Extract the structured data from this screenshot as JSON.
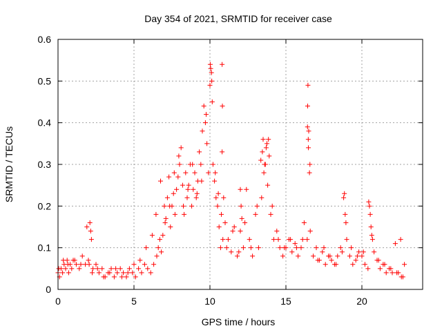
{
  "chart_data": {
    "type": "scatter",
    "title": "Day 354 of 2021, SRMTID for receiver case",
    "xlabel": "GPS time / hours",
    "ylabel": "SRMTID / TECUs",
    "xlim": [
      0,
      24
    ],
    "ylim": [
      0,
      0.6
    ],
    "x_ticks": [
      0,
      5,
      10,
      15,
      20
    ],
    "x_tick_labels": [
      "0",
      "5",
      "10",
      "15",
      "20"
    ],
    "y_ticks": [
      0,
      0.1,
      0.2,
      0.3,
      0.4,
      0.5,
      0.6
    ],
    "y_tick_labels": [
      "0",
      "0.1",
      "0.2",
      "0.3",
      "0.4",
      "0.5",
      "0.6"
    ],
    "grid": true,
    "marker": "+",
    "color": "#ff0000",
    "series": [
      {
        "name": "SRMTID",
        "x": [
          0.0,
          0.1,
          0.2,
          0.3,
          0.4,
          0.5,
          0.6,
          0.7,
          0.8,
          0.9,
          1.0,
          1.2,
          1.4,
          1.6,
          1.8,
          2.0,
          2.1,
          2.15,
          2.2,
          2.3,
          2.5,
          2.7,
          2.9,
          3.1,
          3.3,
          3.5,
          3.7,
          3.9,
          4.1,
          4.3,
          4.5,
          4.7,
          4.9,
          5.1,
          5.3,
          5.5,
          5.7,
          5.9,
          6.1,
          6.3,
          6.5,
          6.6,
          6.7,
          6.8,
          6.9,
          7.0,
          7.1,
          7.2,
          7.3,
          7.4,
          7.5,
          7.6,
          7.7,
          7.8,
          7.9,
          8.0,
          8.1,
          8.2,
          8.3,
          8.4,
          8.5,
          8.6,
          8.7,
          8.8,
          8.9,
          9.0,
          9.1,
          9.2,
          9.3,
          9.4,
          9.5,
          9.6,
          9.7,
          9.8,
          9.9,
          10.0,
          10.05,
          10.1,
          10.15,
          10.2,
          10.3,
          10.4,
          10.5,
          10.6,
          10.7,
          10.8,
          10.9,
          11.0,
          11.2,
          11.4,
          11.6,
          11.8,
          12.0,
          12.2,
          12.4,
          12.6,
          12.8,
          13.0,
          13.2,
          13.4,
          13.5,
          13.6,
          13.7,
          13.8,
          13.9,
          14.0,
          14.2,
          14.4,
          14.6,
          14.8,
          15.0,
          15.2,
          15.4,
          15.6,
          15.8,
          16.0,
          16.2,
          16.4,
          16.45,
          16.5,
          16.55,
          16.6,
          16.8,
          17.0,
          17.2,
          17.4,
          17.6,
          17.8,
          18.0,
          18.2,
          18.4,
          18.6,
          18.8,
          18.9,
          19.0,
          19.2,
          19.4,
          19.6,
          19.8,
          20.0,
          20.2,
          20.4,
          20.5,
          20.6,
          20.7,
          20.8,
          21.0,
          21.2,
          21.4,
          21.6,
          21.8,
          22.0,
          22.2,
          22.4,
          22.6,
          22.8,
          0.05,
          0.35,
          0.65,
          1.1,
          1.5,
          1.9,
          2.05,
          2.25,
          2.6,
          3.0,
          3.4,
          3.8,
          4.2,
          4.6,
          5.0,
          5.4,
          5.8,
          6.2,
          6.45,
          6.75,
          7.05,
          7.35,
          7.65,
          7.95,
          8.25,
          8.55,
          8.85,
          9.15,
          9.45,
          9.75,
          10.02,
          10.12,
          10.35,
          10.55,
          10.75,
          10.85,
          11.1,
          11.5,
          11.9,
          12.3,
          12.7,
          13.1,
          13.45,
          13.65,
          13.85,
          14.1,
          14.5,
          14.9,
          15.3,
          15.7,
          16.1,
          16.42,
          16.48,
          16.58,
          17.1,
          17.5,
          17.9,
          18.3,
          18.7,
          18.85,
          18.95,
          19.3,
          19.7,
          20.1,
          20.45,
          20.55,
          20.65,
          21.1,
          21.5,
          21.9,
          22.3,
          22.55,
          22.7,
          12.0,
          12.05,
          12.1,
          13.35,
          13.55,
          13.75,
          10.8,
          10.82,
          16.43,
          16.47
        ],
        "y": [
          0.04,
          0.03,
          0.05,
          0.04,
          0.06,
          0.05,
          0.07,
          0.04,
          0.06,
          0.05,
          0.07,
          0.06,
          0.05,
          0.08,
          0.06,
          0.07,
          0.16,
          0.14,
          0.12,
          0.05,
          0.06,
          0.04,
          0.05,
          0.03,
          0.04,
          0.05,
          0.03,
          0.04,
          0.05,
          0.04,
          0.03,
          0.05,
          0.04,
          0.03,
          0.05,
          0.04,
          0.06,
          0.05,
          0.04,
          0.06,
          0.08,
          0.1,
          0.12,
          0.09,
          0.13,
          0.2,
          0.17,
          0.22,
          0.27,
          0.15,
          0.2,
          0.23,
          0.18,
          0.24,
          0.27,
          0.3,
          0.34,
          0.25,
          0.18,
          0.28,
          0.22,
          0.25,
          0.3,
          0.2,
          0.24,
          0.28,
          0.22,
          0.26,
          0.33,
          0.3,
          0.38,
          0.44,
          0.4,
          0.35,
          0.28,
          0.49,
          0.53,
          0.52,
          0.45,
          0.3,
          0.26,
          0.22,
          0.2,
          0.15,
          0.1,
          0.33,
          0.22,
          0.16,
          0.12,
          0.09,
          0.15,
          0.08,
          0.14,
          0.1,
          0.24,
          0.12,
          0.08,
          0.18,
          0.1,
          0.22,
          0.36,
          0.3,
          0.34,
          0.25,
          0.32,
          0.18,
          0.12,
          0.14,
          0.1,
          0.08,
          0.1,
          0.12,
          0.09,
          0.11,
          0.08,
          0.1,
          0.16,
          0.12,
          0.49,
          0.38,
          0.28,
          0.14,
          0.08,
          0.1,
          0.07,
          0.09,
          0.06,
          0.08,
          0.07,
          0.06,
          0.08,
          0.1,
          0.22,
          0.18,
          0.12,
          0.08,
          0.06,
          0.07,
          0.09,
          0.08,
          0.06,
          0.05,
          0.2,
          0.15,
          0.12,
          0.09,
          0.07,
          0.05,
          0.06,
          0.04,
          0.05,
          0.04,
          0.11,
          0.04,
          0.03,
          0.06,
          0.05,
          0.07,
          0.06,
          0.07,
          0.06,
          0.15,
          0.06,
          0.04,
          0.05,
          0.03,
          0.04,
          0.05,
          0.03,
          0.04,
          0.06,
          0.07,
          0.1,
          0.13,
          0.18,
          0.26,
          0.16,
          0.2,
          0.28,
          0.32,
          0.2,
          0.24,
          0.3,
          0.23,
          0.26,
          0.42,
          0.54,
          0.5,
          0.28,
          0.23,
          0.18,
          0.12,
          0.1,
          0.14,
          0.09,
          0.16,
          0.1,
          0.2,
          0.33,
          0.3,
          0.36,
          0.2,
          0.12,
          0.1,
          0.12,
          0.1,
          0.12,
          0.39,
          0.34,
          0.3,
          0.07,
          0.1,
          0.08,
          0.06,
          0.09,
          0.23,
          0.16,
          0.1,
          0.08,
          0.09,
          0.21,
          0.18,
          0.13,
          0.07,
          0.06,
          0.05,
          0.04,
          0.12,
          0.03,
          0.24,
          0.2,
          0.17,
          0.31,
          0.28,
          0.35,
          0.54,
          0.44,
          0.44,
          0.36
        ]
      }
    ]
  }
}
